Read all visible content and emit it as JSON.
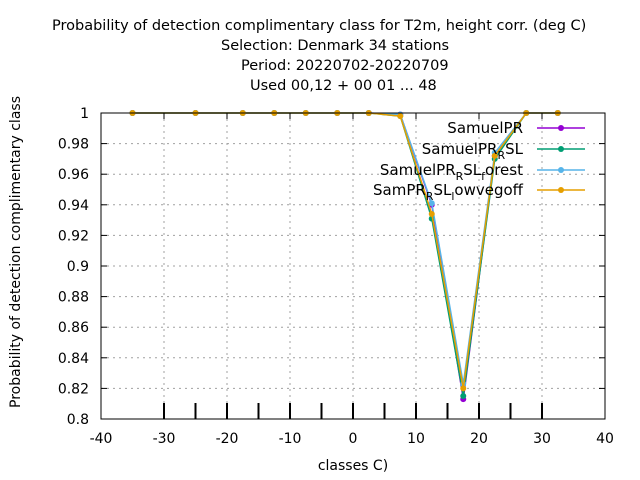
{
  "chart_data": {
    "type": "line",
    "title_lines": [
      "Probability of detection complimentary class  for T2m, height corr. (deg C)",
      "Selection: Denmark     34 stations",
      "Period: 20220702-20220709",
      "Used  00,12  + 00 01 ... 48"
    ],
    "xlabel": "classes C)",
    "ylabel": "Probability of detection complimentary class",
    "xlim": [
      -40,
      40
    ],
    "ylim": [
      0.8,
      1.0
    ],
    "xticks": [
      -40,
      -30,
      -20,
      -10,
      0,
      10,
      20,
      30,
      40
    ],
    "yticks": [
      0.8,
      0.82,
      0.84,
      0.86,
      0.88,
      0.9,
      0.92,
      0.94,
      0.96,
      0.98,
      1
    ],
    "grid": true,
    "legend_position": "top-right",
    "sample_tick_x": [
      -30,
      -25,
      -20,
      -15,
      -10,
      -5,
      0,
      5,
      10,
      15,
      20,
      25,
      30
    ],
    "series": [
      {
        "name": "SamuelPR",
        "color": "#9400d3",
        "x": [
          -35,
          -25,
          -17.5,
          -12.5,
          -7.5,
          -2.5,
          2.5,
          7.5,
          12.5,
          17.5,
          22.5,
          27.5,
          32.5
        ],
        "y": [
          1,
          1,
          1,
          1,
          1,
          1,
          1,
          0.999,
          0.94,
          0.813,
          0.972,
          1,
          1
        ]
      },
      {
        "name": "SamuelPR_RSL",
        "color": "#009e73",
        "x": [
          -35,
          -25,
          -17.5,
          -12.5,
          -7.5,
          -2.5,
          2.5,
          7.5,
          12.5,
          17.5,
          22.5,
          27.5,
          32.5
        ],
        "y": [
          1,
          1,
          1,
          1,
          1,
          1,
          1,
          0.998,
          0.931,
          0.815,
          0.97,
          1,
          1
        ]
      },
      {
        "name": "SamuelPR_RSL_forest",
        "color": "#56b4e9",
        "x": [
          -35,
          -25,
          -17.5,
          -12.5,
          -7.5,
          -2.5,
          2.5,
          7.5,
          12.5,
          17.5,
          22.5,
          27.5,
          32.5
        ],
        "y": [
          1,
          1,
          1,
          1,
          1,
          1,
          1,
          0.999,
          0.941,
          0.823,
          0.974,
          1,
          1
        ]
      },
      {
        "name": "SamPR_RSL_lowvegoff",
        "color": "#e69f00",
        "x": [
          -35,
          -25,
          -17.5,
          -12.5,
          -7.5,
          -2.5,
          2.5,
          7.5,
          12.5,
          17.5,
          22.5,
          27.5,
          32.5
        ],
        "y": [
          1,
          1,
          1,
          1,
          1,
          1,
          1,
          0.998,
          0.934,
          0.82,
          0.972,
          1,
          1
        ]
      }
    ],
    "legend_labels": [
      {
        "main": "SamuelPR",
        "parts": []
      },
      {
        "main": "SamuelPR",
        "parts": [
          {
            "sub": "R"
          },
          {
            "text": "SL"
          }
        ]
      },
      {
        "main": "SamuelPR",
        "parts": [
          {
            "sub": "R"
          },
          {
            "text": "SL"
          },
          {
            "sub": "f"
          },
          {
            "text": "orest"
          }
        ]
      },
      {
        "main": "SamPR",
        "parts": [
          {
            "sub": "R"
          },
          {
            "text": "SL"
          },
          {
            "sub": "l"
          },
          {
            "text": "owvegoff"
          }
        ]
      }
    ]
  }
}
